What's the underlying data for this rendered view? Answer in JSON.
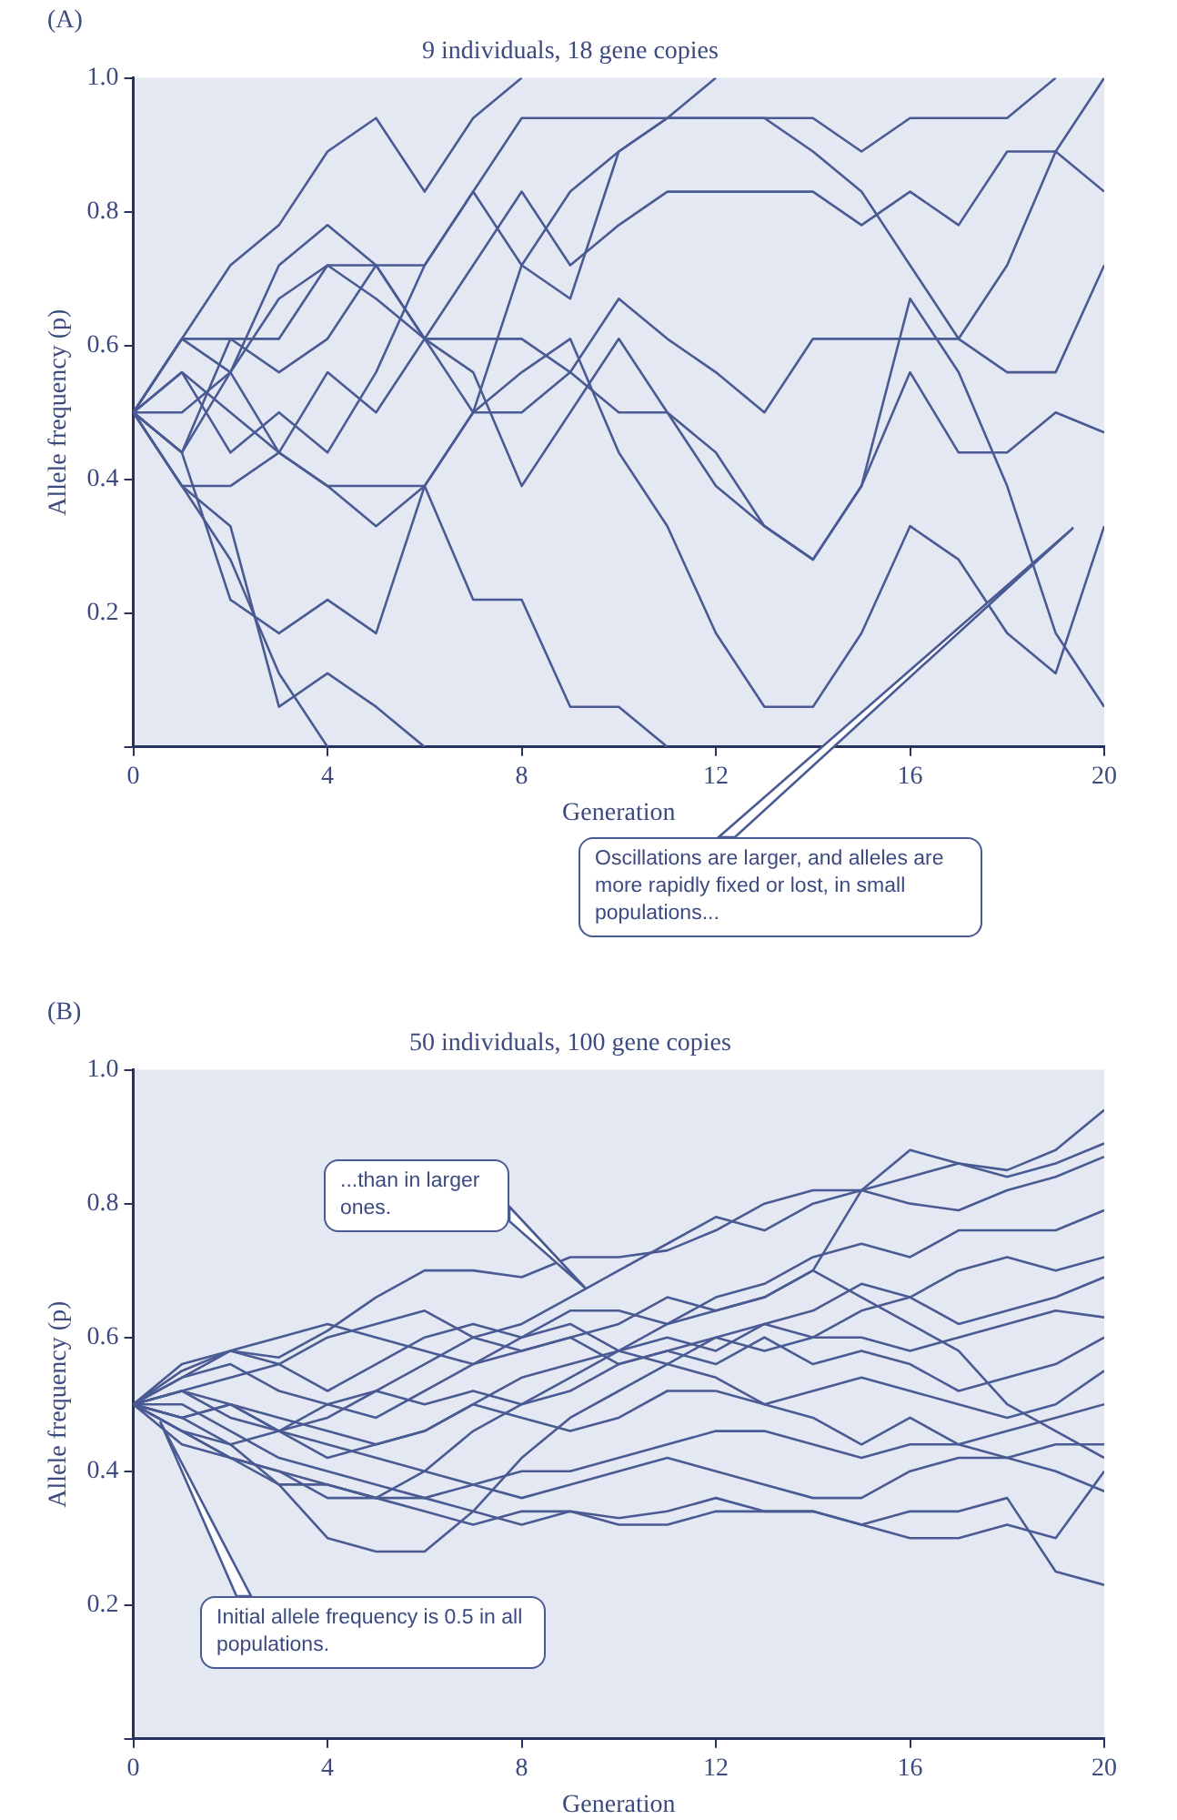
{
  "chart_data": [
    {
      "type": "line",
      "title": "9 individuals, 18 gene copies",
      "xlabel": "Generation",
      "ylabel": "Allele frequency (p)",
      "x": [
        0,
        1,
        2,
        3,
        4,
        5,
        6,
        7,
        8,
        9,
        10,
        11,
        12,
        13,
        14,
        15,
        16,
        17,
        18,
        19,
        20
      ],
      "xlim": [
        0,
        20
      ],
      "ylim": [
        0,
        1
      ],
      "xticks": [
        0,
        4,
        8,
        12,
        16,
        20
      ],
      "yticks": [
        {
          "value": 0,
          "label": null
        },
        {
          "value": 0.2,
          "label": "0.2"
        },
        {
          "value": 0.4,
          "label": "0.4"
        },
        {
          "value": 0.6,
          "label": "0.6"
        },
        {
          "value": 0.8,
          "label": "0.8"
        },
        {
          "value": 1,
          "label": "1.0"
        }
      ],
      "grid": false,
      "legend": false,
      "marker": "none",
      "line_style": "solid",
      "annotations": [
        "(A)",
        "Oscillations are larger, and alleles are more rapidly fixed or lost, in small populations..."
      ],
      "series": [
        {
          "color": "#4a5a93",
          "values": [
            0.5,
            0.39,
            0.28,
            0.11,
            0,
            null,
            null,
            null,
            null,
            null,
            null,
            null,
            null,
            null,
            null,
            null,
            null,
            null,
            null,
            null,
            null
          ]
        },
        {
          "color": "#4a5a93",
          "values": [
            0.5,
            0.39,
            0.33,
            0.06,
            0.11,
            0.06,
            0,
            null,
            null,
            null,
            null,
            null,
            null,
            null,
            null,
            null,
            null,
            null,
            null,
            null,
            null
          ]
        },
        {
          "color": "#4a5a93",
          "values": [
            0.5,
            0.44,
            0.22,
            0.17,
            0.22,
            0.17,
            0.39,
            0.22,
            0.22,
            0.06,
            0.06,
            0,
            null,
            null,
            null,
            null,
            null,
            null,
            null,
            null,
            null
          ]
        },
        {
          "color": "#4a5a93",
          "values": [
            0.5,
            0.61,
            0.72,
            0.78,
            0.89,
            0.94,
            0.83,
            0.94,
            1,
            null,
            null,
            null,
            null,
            null,
            null,
            null,
            null,
            null,
            null,
            null,
            null
          ]
        },
        {
          "color": "#4a5a93",
          "values": [
            0.5,
            0.61,
            0.61,
            0.61,
            0.72,
            0.72,
            0.72,
            0.83,
            0.94,
            0.94,
            0.94,
            0.94,
            0.94,
            0.94,
            0.94,
            0.89,
            0.94,
            0.94,
            0.94,
            1,
            null
          ]
        },
        {
          "color": "#4a5a93",
          "values": [
            0.5,
            0.56,
            0.5,
            0.44,
            0.39,
            0.39,
            0.39,
            0.5,
            0.5,
            0.56,
            0.5,
            0.5,
            0.44,
            0.33,
            0.28,
            0.39,
            0.56,
            0.44,
            0.44,
            0.5,
            0.47
          ]
        },
        {
          "color": "#4a5a93",
          "values": [
            0.5,
            0.44,
            0.56,
            0.44,
            0.39,
            0.33,
            0.39,
            0.5,
            0.56,
            0.61,
            0.44,
            0.33,
            0.17,
            0.06,
            0.06,
            0.17,
            0.33,
            0.28,
            0.17,
            0.11,
            0.33
          ]
        },
        {
          "color": "#4a5a93",
          "values": [
            0.5,
            0.61,
            0.56,
            0.67,
            0.72,
            0.67,
            0.61,
            0.61,
            0.61,
            0.56,
            0.67,
            0.61,
            0.56,
            0.5,
            0.61,
            0.61,
            0.61,
            0.61,
            0.56,
            0.56,
            0.72
          ]
        },
        {
          "color": "#4a5a93",
          "values": [
            0.5,
            0.5,
            0.56,
            0.72,
            0.78,
            0.72,
            0.61,
            0.72,
            0.83,
            0.72,
            0.78,
            0.83,
            0.83,
            0.83,
            0.83,
            0.78,
            0.83,
            0.78,
            0.89,
            0.89,
            0.83
          ]
        },
        {
          "color": "#4a5a93",
          "values": [
            0.5,
            0.39,
            0.39,
            0.44,
            0.56,
            0.5,
            0.61,
            0.56,
            0.39,
            0.5,
            0.61,
            0.5,
            0.39,
            0.33,
            0.28,
            0.39,
            0.67,
            0.56,
            0.39,
            0.17,
            0.06
          ]
        },
        {
          "color": "#4a5a93",
          "values": [
            0.5,
            0.56,
            0.44,
            0.5,
            0.44,
            0.56,
            0.72,
            0.83,
            0.72,
            0.67,
            0.89,
            0.94,
            1,
            null,
            null,
            null,
            null,
            null,
            null,
            null,
            null
          ]
        },
        {
          "color": "#4a5a93",
          "values": [
            0.5,
            0.44,
            0.61,
            0.56,
            0.61,
            0.72,
            0.61,
            0.5,
            0.72,
            0.83,
            0.89,
            0.94,
            0.94,
            0.94,
            0.89,
            0.83,
            0.72,
            0.61,
            0.72,
            0.89,
            1
          ]
        }
      ]
    },
    {
      "type": "line",
      "title": "50 individuals, 100 gene copies",
      "xlabel": "Generation",
      "ylabel": "Allele frequency (p)",
      "x": [
        0,
        1,
        2,
        3,
        4,
        5,
        6,
        7,
        8,
        9,
        10,
        11,
        12,
        13,
        14,
        15,
        16,
        17,
        18,
        19,
        20
      ],
      "xlim": [
        0,
        20
      ],
      "ylim": [
        0,
        1
      ],
      "xticks": [
        0,
        4,
        8,
        12,
        16,
        20
      ],
      "yticks": [
        {
          "value": 0,
          "label": null
        },
        {
          "value": 0.2,
          "label": "0.2"
        },
        {
          "value": 0.4,
          "label": "0.4"
        },
        {
          "value": 0.6,
          "label": "0.6"
        },
        {
          "value": 0.8,
          "label": "0.8"
        },
        {
          "value": 1,
          "label": "1.0"
        }
      ],
      "grid": false,
      "legend": false,
      "marker": "none",
      "line_style": "solid",
      "annotations": [
        "(B)",
        "...than in larger ones.",
        "Initial allele frequency is 0.5 in all populations."
      ],
      "series": [
        {
          "color": "#4a5a93",
          "values": [
            0.5,
            0.52,
            0.54,
            0.56,
            0.6,
            0.62,
            0.64,
            0.6,
            0.62,
            0.66,
            0.7,
            0.74,
            0.78,
            0.76,
            0.8,
            0.82,
            0.84,
            0.86,
            0.85,
            0.88,
            0.94
          ]
        },
        {
          "color": "#4a5a93",
          "values": [
            0.5,
            0.55,
            0.58,
            0.57,
            0.61,
            0.66,
            0.7,
            0.7,
            0.69,
            0.72,
            0.72,
            0.73,
            0.76,
            0.8,
            0.82,
            0.82,
            0.88,
            0.86,
            0.84,
            0.86,
            0.89
          ]
        },
        {
          "color": "#4a5a93",
          "values": [
            0.5,
            0.48,
            0.5,
            0.46,
            0.48,
            0.52,
            0.56,
            0.6,
            0.58,
            0.6,
            0.62,
            0.66,
            0.64,
            0.66,
            0.7,
            0.82,
            0.8,
            0.79,
            0.82,
            0.84,
            0.87
          ]
        },
        {
          "color": "#4a5a93",
          "values": [
            0.5,
            0.46,
            0.42,
            0.4,
            0.36,
            0.36,
            0.4,
            0.46,
            0.5,
            0.54,
            0.58,
            0.62,
            0.66,
            0.68,
            0.72,
            0.74,
            0.72,
            0.76,
            0.76,
            0.76,
            0.79
          ]
        },
        {
          "color": "#4a5a93",
          "values": [
            0.5,
            0.48,
            0.44,
            0.38,
            0.3,
            0.28,
            0.28,
            0.34,
            0.42,
            0.48,
            0.52,
            0.56,
            0.6,
            0.62,
            0.6,
            0.64,
            0.66,
            0.7,
            0.72,
            0.7,
            0.72
          ]
        },
        {
          "color": "#4a5a93",
          "values": [
            0.5,
            0.52,
            0.5,
            0.48,
            0.46,
            0.44,
            0.46,
            0.5,
            0.54,
            0.56,
            0.58,
            0.6,
            0.58,
            0.62,
            0.64,
            0.68,
            0.66,
            0.62,
            0.64,
            0.66,
            0.69
          ]
        },
        {
          "color": "#4a5a93",
          "values": [
            0.5,
            0.54,
            0.56,
            0.52,
            0.5,
            0.52,
            0.5,
            0.52,
            0.5,
            0.52,
            0.56,
            0.58,
            0.6,
            0.58,
            0.6,
            0.6,
            0.58,
            0.6,
            0.62,
            0.64,
            0.63
          ]
        },
        {
          "color": "#4a5a93",
          "values": [
            0.5,
            0.52,
            0.48,
            0.46,
            0.5,
            0.48,
            0.52,
            0.56,
            0.58,
            0.6,
            0.56,
            0.58,
            0.56,
            0.6,
            0.56,
            0.58,
            0.56,
            0.52,
            0.54,
            0.56,
            0.6
          ]
        },
        {
          "color": "#4a5a93",
          "values": [
            0.5,
            0.46,
            0.44,
            0.46,
            0.42,
            0.44,
            0.46,
            0.5,
            0.48,
            0.46,
            0.48,
            0.52,
            0.52,
            0.5,
            0.52,
            0.54,
            0.52,
            0.5,
            0.48,
            0.5,
            0.55
          ]
        },
        {
          "color": "#4a5a93",
          "values": [
            0.5,
            0.44,
            0.42,
            0.4,
            0.38,
            0.36,
            0.36,
            0.38,
            0.4,
            0.4,
            0.42,
            0.44,
            0.46,
            0.46,
            0.44,
            0.42,
            0.44,
            0.44,
            0.46,
            0.48,
            0.5
          ]
        },
        {
          "color": "#4a5a93",
          "values": [
            0.5,
            0.48,
            0.5,
            0.46,
            0.44,
            0.42,
            0.4,
            0.38,
            0.36,
            0.38,
            0.4,
            0.42,
            0.4,
            0.38,
            0.36,
            0.36,
            0.4,
            0.42,
            0.42,
            0.44,
            0.44
          ]
        },
        {
          "color": "#4a5a93",
          "values": [
            0.5,
            0.46,
            0.42,
            0.38,
            0.38,
            0.36,
            0.34,
            0.32,
            0.34,
            0.34,
            0.32,
            0.32,
            0.34,
            0.34,
            0.34,
            0.32,
            0.3,
            0.3,
            0.32,
            0.3,
            0.4
          ]
        },
        {
          "color": "#4a5a93",
          "values": [
            0.5,
            0.5,
            0.46,
            0.42,
            0.4,
            0.38,
            0.36,
            0.34,
            0.32,
            0.34,
            0.33,
            0.34,
            0.36,
            0.34,
            0.34,
            0.32,
            0.34,
            0.34,
            0.36,
            0.25,
            0.23
          ]
        },
        {
          "color": "#4a5a93",
          "values": [
            0.5,
            0.54,
            0.58,
            0.56,
            0.52,
            0.56,
            0.6,
            0.62,
            0.6,
            0.62,
            0.58,
            0.56,
            0.54,
            0.5,
            0.48,
            0.44,
            0.48,
            0.44,
            0.42,
            0.4,
            0.37
          ]
        },
        {
          "color": "#4a5a93",
          "values": [
            0.5,
            0.56,
            0.58,
            0.6,
            0.62,
            0.6,
            0.58,
            0.56,
            0.6,
            0.64,
            0.64,
            0.62,
            0.64,
            0.66,
            0.7,
            0.66,
            0.62,
            0.58,
            0.5,
            0.46,
            0.42
          ]
        }
      ]
    }
  ]
}
